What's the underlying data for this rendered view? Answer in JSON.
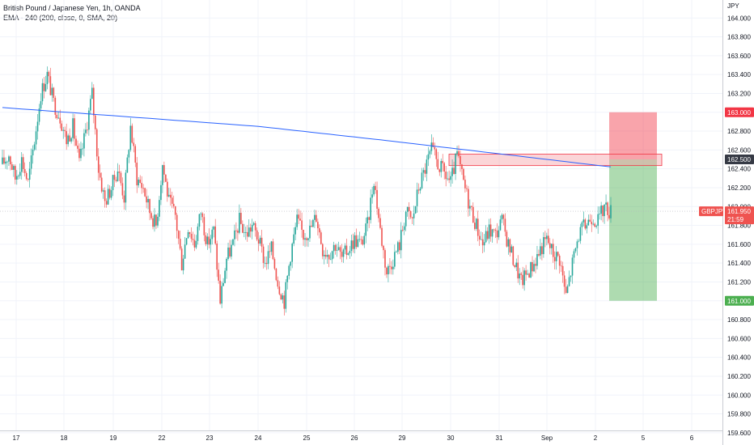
{
  "legend": {
    "title": "British Pound / Japanese Yen, 1h, OANDA",
    "indicator": "EMA - 240 (200, close, 0, SMA, 20)"
  },
  "colors": {
    "bull": "#26a69a",
    "bear": "#ef5350",
    "ema": "#2962ff",
    "target": "#4caf50",
    "stop": "#f23645",
    "zone": "#f7a1a9"
  },
  "chart_data": {
    "type": "candlestick",
    "currency": "JPY",
    "y_ticks": [
      "159.600",
      "159.800",
      "160.000",
      "160.200",
      "160.400",
      "160.600",
      "160.800",
      "161.000",
      "161.200",
      "161.400",
      "161.600",
      "161.800",
      "162.000",
      "162.200",
      "162.400",
      "162.600",
      "162.800",
      "163.000",
      "163.200",
      "163.400",
      "163.600",
      "163.800",
      "164.000"
    ],
    "ylim": [
      159.5,
      164.2
    ],
    "x_ticks": [
      "17",
      "18",
      "19",
      "22",
      "23",
      "24",
      "25",
      "26",
      "29",
      "30",
      "31",
      "Sep",
      "2",
      "5",
      "6"
    ],
    "close_waypoints": [
      [
        0,
        162.45
      ],
      [
        4,
        162.55
      ],
      [
        8,
        162.3
      ],
      [
        12,
        162.5
      ],
      [
        16,
        162.25
      ],
      [
        20,
        162.7
      ],
      [
        24,
        163.2
      ],
      [
        28,
        163.4
      ],
      [
        32,
        163.1
      ],
      [
        36,
        162.95
      ],
      [
        40,
        162.7
      ],
      [
        44,
        162.85
      ],
      [
        48,
        162.45
      ],
      [
        52,
        162.8
      ],
      [
        56,
        163.2
      ],
      [
        60,
        162.4
      ],
      [
        64,
        162.05
      ],
      [
        68,
        162.2
      ],
      [
        72,
        162.4
      ],
      [
        76,
        162.1
      ],
      [
        80,
        162.85
      ],
      [
        84,
        162.3
      ],
      [
        88,
        162.2
      ],
      [
        92,
        161.95
      ],
      [
        96,
        161.8
      ],
      [
        100,
        162.45
      ],
      [
        104,
        162.05
      ],
      [
        108,
        161.9
      ],
      [
        112,
        161.4
      ],
      [
        116,
        161.8
      ],
      [
        120,
        161.6
      ],
      [
        124,
        161.95
      ],
      [
        128,
        161.6
      ],
      [
        132,
        161.75
      ],
      [
        136,
        161.0
      ],
      [
        140,
        161.45
      ],
      [
        144,
        161.6
      ],
      [
        148,
        161.85
      ],
      [
        152,
        161.7
      ],
      [
        156,
        161.8
      ],
      [
        160,
        161.65
      ],
      [
        164,
        161.4
      ],
      [
        168,
        161.55
      ],
      [
        172,
        161.2
      ],
      [
        176,
        161.0
      ],
      [
        180,
        161.5
      ],
      [
        184,
        161.85
      ],
      [
        188,
        161.7
      ],
      [
        192,
        161.75
      ],
      [
        196,
        161.9
      ],
      [
        200,
        161.55
      ],
      [
        204,
        161.5
      ],
      [
        208,
        161.6
      ],
      [
        212,
        161.45
      ],
      [
        216,
        161.55
      ],
      [
        220,
        161.65
      ],
      [
        224,
        161.6
      ],
      [
        228,
        161.8
      ],
      [
        232,
        162.3
      ],
      [
        236,
        161.75
      ],
      [
        240,
        161.3
      ],
      [
        244,
        161.45
      ],
      [
        248,
        161.6
      ],
      [
        252,
        161.95
      ],
      [
        256,
        161.85
      ],
      [
        260,
        162.2
      ],
      [
        264,
        162.4
      ],
      [
        268,
        162.6
      ],
      [
        272,
        162.45
      ],
      [
        276,
        162.35
      ],
      [
        280,
        162.25
      ],
      [
        284,
        162.55
      ],
      [
        288,
        162.25
      ],
      [
        292,
        162.0
      ],
      [
        296,
        161.8
      ],
      [
        300,
        161.6
      ],
      [
        304,
        161.75
      ],
      [
        308,
        161.7
      ],
      [
        312,
        161.85
      ],
      [
        316,
        161.6
      ],
      [
        320,
        161.4
      ],
      [
        324,
        161.2
      ],
      [
        328,
        161.3
      ],
      [
        332,
        161.4
      ],
      [
        336,
        161.55
      ],
      [
        340,
        161.65
      ],
      [
        344,
        161.5
      ],
      [
        348,
        161.45
      ],
      [
        352,
        161.05
      ],
      [
        356,
        161.4
      ],
      [
        360,
        161.7
      ],
      [
        364,
        161.8
      ],
      [
        368,
        161.9
      ],
      [
        372,
        161.85
      ],
      [
        376,
        162.0
      ],
      [
        380,
        161.95
      ]
    ],
    "ema_waypoints": [
      [
        0,
        163.05
      ],
      [
        80,
        162.95
      ],
      [
        160,
        162.85
      ],
      [
        240,
        162.7
      ],
      [
        300,
        162.58
      ],
      [
        340,
        162.5
      ],
      [
        380,
        162.42
      ]
    ],
    "resistance_zone": [
      162.46,
      162.53
    ],
    "position": {
      "entry": 162.5,
      "stop": 163.0,
      "target": 161.0
    },
    "price_badges": [
      {
        "label": "163.000",
        "value": 163.0,
        "kind": "stop"
      },
      {
        "label": "162.500",
        "value": 162.5,
        "kind": "dark"
      },
      {
        "label": "161.000",
        "value": 161.0,
        "kind": "target"
      }
    ],
    "current": {
      "symbol": "GBPJPY",
      "price_label": "161.950",
      "time": "21:59",
      "value": 161.95
    }
  }
}
